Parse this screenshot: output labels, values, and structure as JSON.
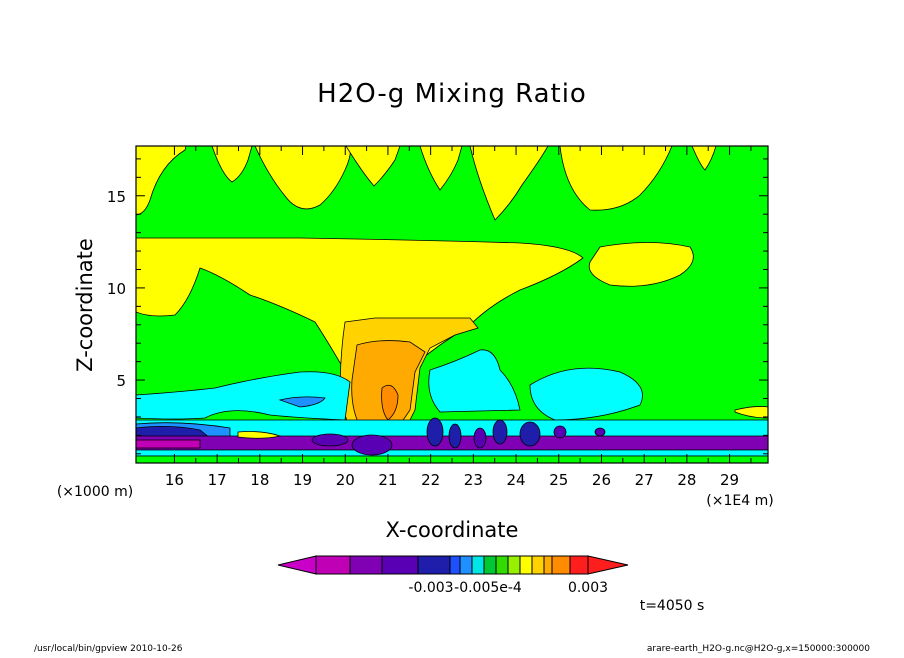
{
  "chart_data": {
    "type": "heatmap",
    "title": "H2O-g Mixing Ratio",
    "xlabel": "X-coordinate",
    "ylabel": "Z-coordinate",
    "x_unit_left": "(×1000 m)",
    "x_unit_right": "(×1E4 m)",
    "x_ticks": [
      "16",
      "17",
      "18",
      "19",
      "20",
      "21",
      "22",
      "23",
      "24",
      "25",
      "26",
      "27",
      "28",
      "29"
    ],
    "y_ticks": [
      "5",
      "10",
      "15"
    ],
    "xlim": [
      15.1,
      29.9
    ],
    "ylim": [
      0.5,
      17.7
    ],
    "colorbar_labels": [
      "-0.003",
      "-0.005e-4",
      "0.003"
    ],
    "colorbar_colors": [
      "#c800c8",
      "#c000b4",
      "#8000b4",
      "#5a00b4",
      "#1e1eaa",
      "#1f50ff",
      "#1e90ff",
      "#00e6e6",
      "#00c832",
      "#32dc00",
      "#96f000",
      "#ffff00",
      "#ffd200",
      "#ffaa00",
      "#ff8c00",
      "#ff1e1e"
    ],
    "time_label": "t=4050 s",
    "footer_left": "/usr/local/bin/gpview  2010-10-26",
    "footer_right": "arare-earth_H2O-g.nc@H2O-g,x=150000:300000",
    "colors": {
      "green": "#00ff00",
      "yellow": "#ffff00",
      "gold": "#ffd200",
      "orange": "#ffaa00",
      "cyan": "#00ffff",
      "blue": "#1e90ff",
      "darkblue": "#1e1eaa",
      "purple": "#8000b4",
      "magenta": "#c000b4"
    }
  }
}
